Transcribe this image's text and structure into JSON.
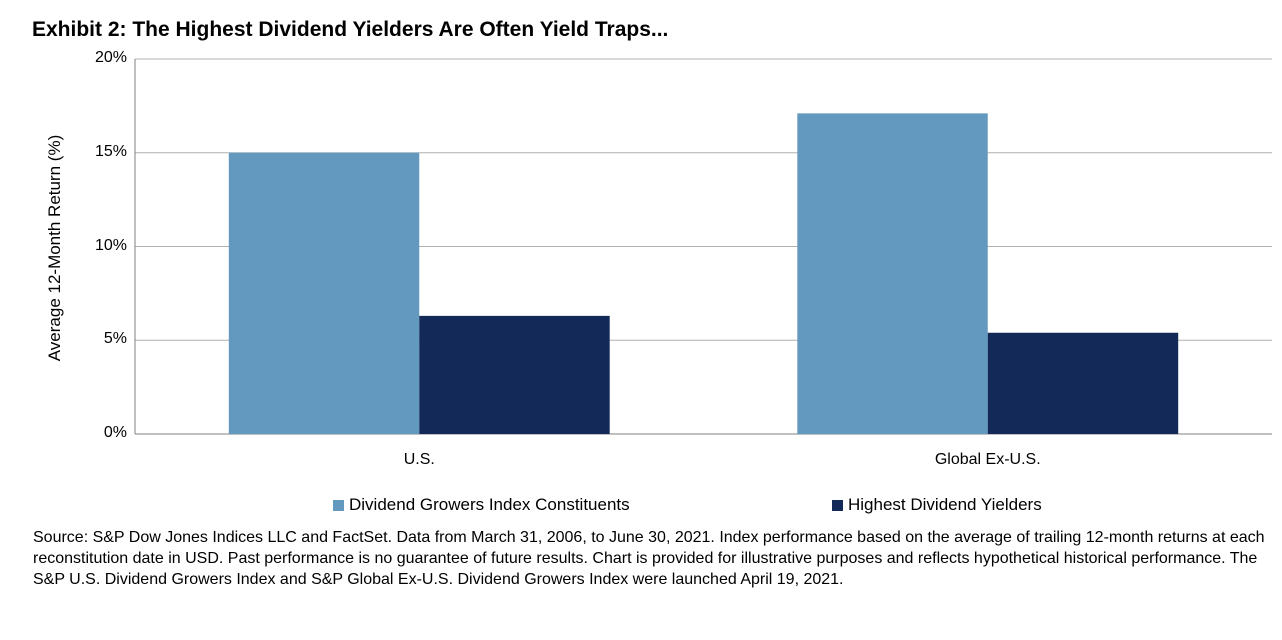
{
  "colors": {
    "series1": "#6399bf",
    "series2": "#132a59",
    "grid": "#b0b0b0",
    "axis": "#808080"
  },
  "chart_data": {
    "type": "bar",
    "title": "Exhibit 2: The Highest Dividend Yielders Are Often Yield Traps...",
    "ylabel": "Average 12-Month Return (%)",
    "xlabel": "",
    "ylim": [
      0,
      20
    ],
    "yticks": [
      "0%",
      "5%",
      "10%",
      "15%",
      "20%"
    ],
    "categories": [
      "U.S.",
      "Global Ex-U.S."
    ],
    "series": [
      {
        "name": "Dividend Growers Index Constituents",
        "values": [
          15.0,
          17.1
        ]
      },
      {
        "name": "Highest Dividend Yielders",
        "values": [
          6.3,
          5.4
        ]
      }
    ],
    "grid": true,
    "legend_position": "bottom"
  },
  "source_text": "Source: S&P Dow Jones Indices LLC and FactSet. Data from March 31, 2006, to June 30, 2021. Index performance based on the average of trailing 12-month returns at each reconstitution date in USD. Past performance is no guarantee of future results. Chart is provided for illustrative purposes and reflects hypothetical historical performance. The S&P U.S. Dividend Growers Index and S&P Global Ex-U.S. Dividend Growers Index were launched April 19, 2021."
}
